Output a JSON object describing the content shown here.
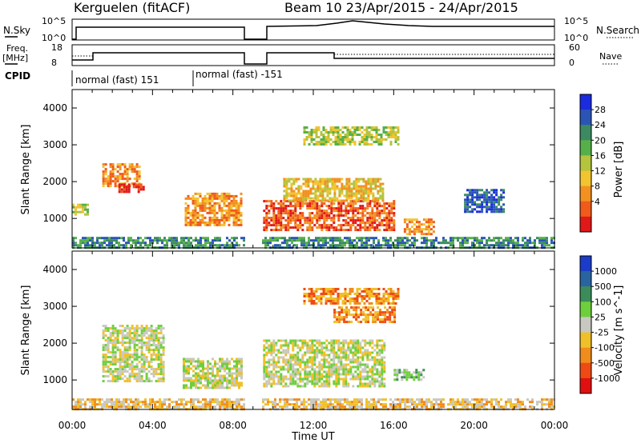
{
  "header": {
    "title": "Kerguelen (fitACF)",
    "beam_info": "Beam 10  23/Apr/2015 - 24/Apr/2015"
  },
  "noise_panel": {
    "left_label": "N.Sky",
    "left_ticks": [
      "10^5",
      "10^0"
    ],
    "right_label": "N.Search",
    "right_ticks": [
      "10^5",
      "10^0"
    ]
  },
  "freq_panel": {
    "left_label": "Freq.",
    "left_unit": "[MHz]",
    "left_ticks": [
      "18",
      "8"
    ],
    "right_label": "Nave",
    "right_ticks": [
      "60",
      "0"
    ]
  },
  "cpid": {
    "label": "CPID",
    "segments": [
      {
        "text": "normal (fast) 151",
        "start_hour": 0
      },
      {
        "text": "normal (fast) -151",
        "start_hour": 6
      }
    ]
  },
  "chart_data": [
    {
      "type": "heatmap",
      "quantity": "Power",
      "ylabel": "Slant Range [km]",
      "yticks": [
        1000,
        2000,
        3000,
        4000
      ],
      "ylim": [
        200,
        4500
      ],
      "xlim": [
        0,
        24
      ],
      "data_gap_hours": [
        8.6,
        9.4
      ],
      "colorbar": {
        "label": "Power [dB]",
        "ticks": [
          "28",
          "24",
          "20",
          "16",
          "12",
          "8",
          "4"
        ],
        "colors": [
          "#1a2be0",
          "#2a55b5",
          "#3b8a62",
          "#56b04a",
          "#b4c43c",
          "#f2c430",
          "#f29020",
          "#f05a1a",
          "#e01818"
        ]
      },
      "regions": [
        {
          "h0": 0.0,
          "h1": 0.8,
          "r0": 1100,
          "r1": 1400,
          "level": 4
        },
        {
          "h0": 1.5,
          "h1": 3.3,
          "r0": 1900,
          "r1": 2500,
          "level": 6
        },
        {
          "h0": 2.3,
          "h1": 3.6,
          "r0": 1750,
          "r1": 1950,
          "level": 8
        },
        {
          "h0": 5.6,
          "h1": 8.4,
          "r0": 800,
          "r1": 1700,
          "level": 6
        },
        {
          "h0": 9.5,
          "h1": 16.0,
          "r0": 700,
          "r1": 1500,
          "level": 7
        },
        {
          "h0": 10.5,
          "h1": 15.5,
          "r0": 1500,
          "r1": 2100,
          "level": 5
        },
        {
          "h0": 11.5,
          "h1": 16.2,
          "r0": 3000,
          "r1": 3500,
          "level": 4
        },
        {
          "h0": 16.5,
          "h1": 18.0,
          "r0": 600,
          "r1": 1000,
          "level": 6
        },
        {
          "h0": 19.5,
          "h1": 21.5,
          "r0": 1200,
          "r1": 1800,
          "level": 1
        },
        {
          "h0": 0.0,
          "h1": 24.0,
          "r0": 200,
          "r1": 500,
          "level": 2
        }
      ]
    },
    {
      "type": "heatmap",
      "quantity": "Velocity",
      "ylabel": "Slant Range [km]",
      "yticks": [
        1000,
        2000,
        3000,
        4000
      ],
      "ylim": [
        200,
        4500
      ],
      "xlim": [
        0,
        24
      ],
      "xlabel": "Time UT",
      "xticks": [
        "00:00",
        "04:00",
        "08:00",
        "12:00",
        "16:00",
        "20:00",
        "00:00"
      ],
      "data_gap_hours": [
        8.6,
        9.4
      ],
      "colorbar": {
        "label": "Velocity [m s^-1]",
        "ticks": [
          "1000",
          "500",
          "100",
          "25",
          "-25",
          "-100",
          "-500",
          "-1000"
        ],
        "colors": [
          "#1a3cc8",
          "#2a64a0",
          "#3c8c5a",
          "#6ecf3c",
          "#c8c8c0",
          "#f0c028",
          "#f08c1c",
          "#f04a14",
          "#e01010"
        ]
      },
      "regions": [
        {
          "h0": 1.5,
          "h1": 4.5,
          "r0": 1000,
          "r1": 2500,
          "level": 4
        },
        {
          "h0": 5.5,
          "h1": 8.4,
          "r0": 800,
          "r1": 1600,
          "level": 4
        },
        {
          "h0": 9.5,
          "h1": 15.5,
          "r0": 800,
          "r1": 2100,
          "level": 4
        },
        {
          "h0": 11.5,
          "h1": 16.2,
          "r0": 3100,
          "r1": 3500,
          "level": 6
        },
        {
          "h0": 13.0,
          "h1": 16.0,
          "r0": 2600,
          "r1": 3000,
          "level": 6
        },
        {
          "h0": 16.0,
          "h1": 17.5,
          "r0": 1000,
          "r1": 1300,
          "level": 3
        },
        {
          "h0": 0.0,
          "h1": 24.0,
          "r0": 200,
          "r1": 500,
          "level": 5
        }
      ]
    }
  ]
}
